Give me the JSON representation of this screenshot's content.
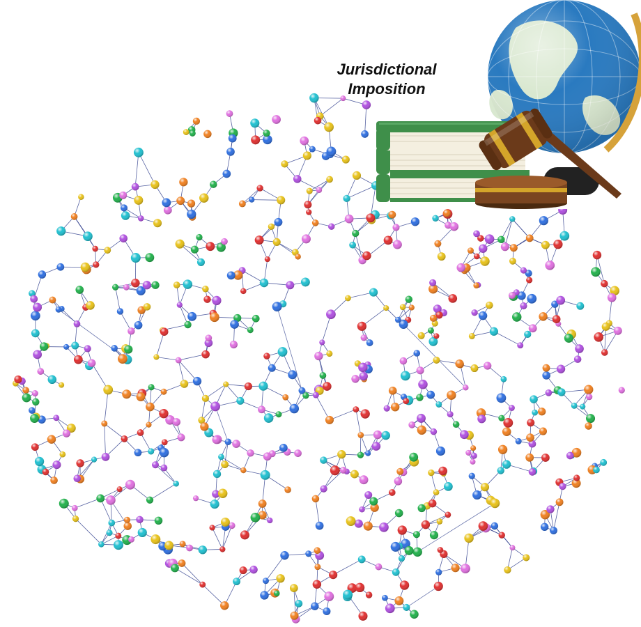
{
  "caption": {
    "line1": "Jurisdictional",
    "line2": "Imposition"
  },
  "network": {
    "node_colors": [
      "#e03030",
      "#2f6fe0",
      "#22b14c",
      "#e8c21a",
      "#e070e0",
      "#f08020",
      "#b050e0",
      "#20c0d0"
    ],
    "edge_color": "#2a3a8a"
  },
  "illustration": {
    "book_cover_color": "#3f8f4a",
    "book_page_color": "#f4efe0",
    "gavel_wood_color": "#6b3a1a",
    "gavel_band_color": "#d4a52a",
    "globe_ocean_color": "#2a7ac0",
    "globe_land_color": "#d9e8d0",
    "globe_ring_color": "#d6a23a"
  }
}
